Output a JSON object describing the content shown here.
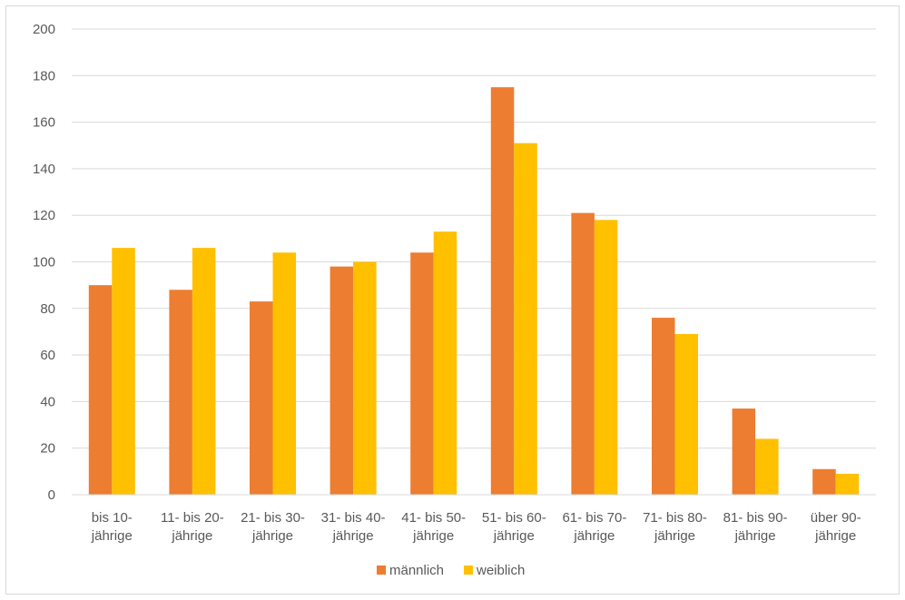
{
  "chart_data": {
    "type": "bar",
    "categories": [
      [
        "bis 10-",
        "jährige"
      ],
      [
        "11- bis 20-",
        "jährige"
      ],
      [
        "21- bis 30-",
        "jährige"
      ],
      [
        "31- bis 40-",
        "jährige"
      ],
      [
        "41- bis 50-",
        "jährige"
      ],
      [
        "51- bis 60-",
        "jährige"
      ],
      [
        "61- bis 70-",
        "jährige"
      ],
      [
        "71- bis 80-",
        "jährige"
      ],
      [
        "81- bis 90-",
        "jährige"
      ],
      [
        "über 90-",
        "jährige"
      ]
    ],
    "series": [
      {
        "name": "männlich",
        "color": "#ED7D31",
        "values": [
          90,
          88,
          83,
          98,
          104,
          175,
          121,
          76,
          37,
          11
        ]
      },
      {
        "name": "weiblich",
        "color": "#FFC000",
        "values": [
          106,
          106,
          104,
          100,
          113,
          151,
          118,
          69,
          24,
          9
        ]
      }
    ],
    "title": "",
    "xlabel": "",
    "ylabel": "",
    "ylim": [
      0,
      200
    ],
    "yticks": [
      "0",
      "20",
      "40",
      "60",
      "80",
      "100",
      "120",
      "140",
      "160",
      "180",
      "200"
    ],
    "grid": true,
    "gridline_color": "#d9d9d9",
    "legend_position": "bottom"
  }
}
